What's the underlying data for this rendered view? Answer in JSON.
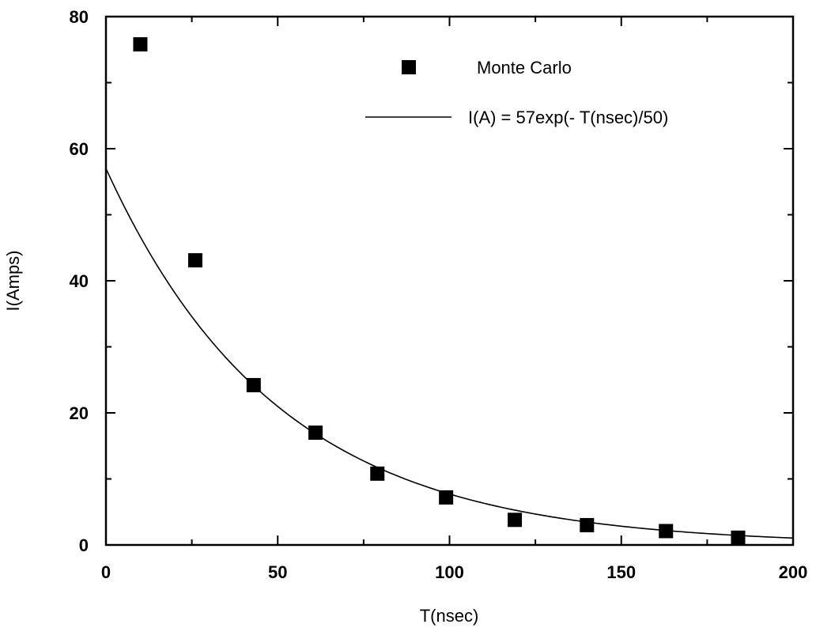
{
  "chart_data": {
    "type": "scatter",
    "xlabel": "T(nsec)",
    "ylabel": "I(Amps)",
    "xlim": [
      0,
      200
    ],
    "ylim": [
      0,
      80
    ],
    "x_ticks": [
      0,
      50,
      100,
      150,
      200
    ],
    "y_ticks": [
      0,
      20,
      40,
      60,
      80
    ],
    "x_tick_labels": [
      "0",
      "50",
      "100",
      "150",
      "200"
    ],
    "y_tick_labels": [
      "0",
      "20",
      "40",
      "60",
      "80"
    ],
    "grid": false,
    "legend_position": "top-right",
    "series": [
      {
        "name": "Monte Carlo",
        "kind": "scatter",
        "marker": "square",
        "color": "#000000",
        "points": [
          {
            "x": 10,
            "y": 75.8
          },
          {
            "x": 26,
            "y": 43.1
          },
          {
            "x": 43,
            "y": 24.2
          },
          {
            "x": 61,
            "y": 17.0
          },
          {
            "x": 79,
            "y": 10.8
          },
          {
            "x": 99,
            "y": 7.2
          },
          {
            "x": 119,
            "y": 3.8
          },
          {
            "x": 140,
            "y": 3.0
          },
          {
            "x": 163,
            "y": 2.1
          },
          {
            "x": 184,
            "y": 1.1
          }
        ]
      },
      {
        "name": "I(A) = 57exp(- T(nsec)/50)",
        "kind": "line",
        "color": "#000000",
        "function": {
          "amplitude": 57,
          "tau": 50
        }
      }
    ]
  }
}
